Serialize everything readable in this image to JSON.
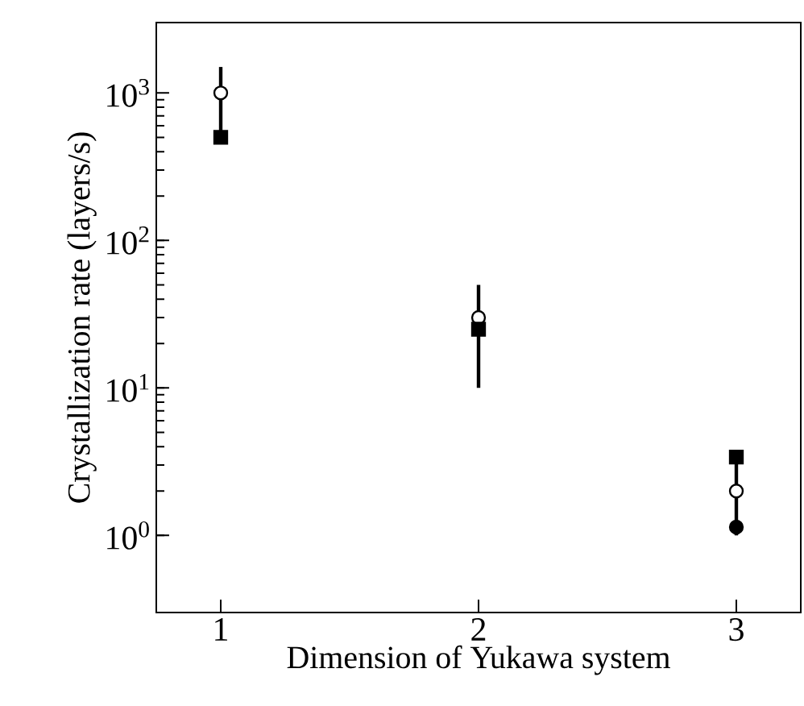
{
  "chart_data": {
    "type": "scatter",
    "xlabel": "Dimension of Yukawa system",
    "ylabel": "Crystallization rate  (layers/s)",
    "log": "y",
    "x": [
      1,
      2,
      3
    ],
    "xlim": [
      0.75,
      3.25
    ],
    "xticks": [
      1,
      2,
      3
    ],
    "ylim": [
      0.3,
      3000
    ],
    "yticks": [
      {
        "value": 1,
        "label": "10$^{0}$"
      },
      {
        "value": 10,
        "label": "10$^{1}$"
      },
      {
        "value": 100,
        "label": "10$^{2}$"
      },
      {
        "value": 1000,
        "label": "10$^{3}$"
      }
    ],
    "series": [
      {
        "color": "#ffffff",
        "marker": "circle",
        "values": [
          1000,
          30,
          2.0
        ],
        "errors": [
          [
            550,
            1500
          ],
          [
            10,
            50
          ],
          [
            1.0,
            3.1
          ]
        ]
      },
      {
        "color": "#000000",
        "marker": "square",
        "values": [
          500,
          25,
          3.4
        ]
      },
      {
        "color": "#000000",
        "marker": "circle",
        "x": [
          3
        ],
        "values": [
          1.14
        ]
      }
    ]
  }
}
